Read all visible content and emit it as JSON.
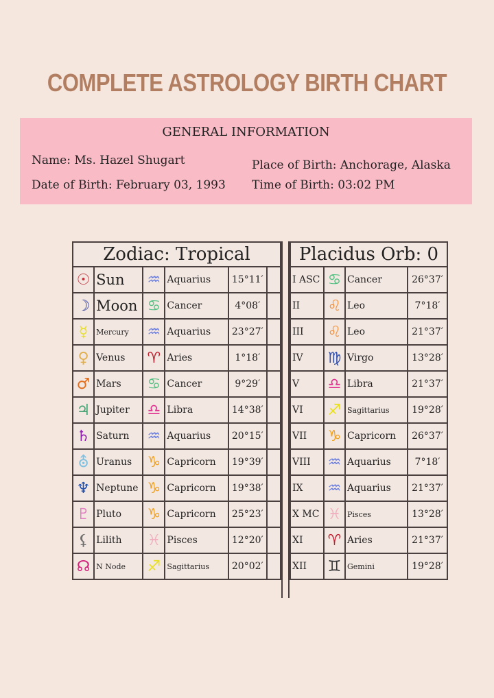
{
  "title": "COMPLETE ASTROLOGY BIRTH CHART",
  "general": {
    "heading": "GENERAL INFORMATION",
    "name": "Name: Ms. Hazel Shugart",
    "dob": "Date of Birth: February 03, 1993",
    "pob": "Place of Birth: Anchorage, Alaska",
    "tob": "Time of Birth: 03:02 PM"
  },
  "zodiac_header": "Zodiac: Tropical",
  "placidus_header": "Placidus Orb: 0",
  "planets": [
    {
      "glyph": "☉",
      "color": "#c0303a",
      "name": "Sun",
      "sign_glyph": "♒",
      "sign_color": "#6a7ee0",
      "sign": "Aquarius",
      "deg": "15°11′"
    },
    {
      "glyph": "☽",
      "color": "#2a3a9a",
      "name": "Moon",
      "sign_glyph": "♋",
      "sign_color": "#50c080",
      "sign": "Cancer",
      "deg": "4°08′"
    },
    {
      "glyph": "☿",
      "color": "#e8e030",
      "name": "Mercury",
      "sign_glyph": "♒",
      "sign_color": "#6a7ee0",
      "sign": "Aquarius",
      "deg": "23°27′"
    },
    {
      "glyph": "♀",
      "color": "#e0b050",
      "name": "Venus",
      "sign_glyph": "♈",
      "sign_color": "#c02030",
      "sign": "Aries",
      "deg": "1°18′"
    },
    {
      "glyph": "♂",
      "color": "#e07020",
      "name": "Mars",
      "sign_glyph": "♋",
      "sign_color": "#50c080",
      "sign": "Cancer",
      "deg": "9°29′"
    },
    {
      "glyph": "♃",
      "color": "#40a070",
      "name": "Jupiter",
      "sign_glyph": "♎",
      "sign_color": "#e03090",
      "sign": "Libra",
      "deg": "14°38′"
    },
    {
      "glyph": "♄",
      "color": "#9020b0",
      "name": "Saturn",
      "sign_glyph": "♒",
      "sign_color": "#6a7ee0",
      "sign": "Aquarius",
      "deg": "20°15′"
    },
    {
      "glyph": "⛢",
      "color": "#80c0e0",
      "name": "Uranus",
      "sign_glyph": "♑",
      "sign_color": "#f0a020",
      "sign": "Capricorn",
      "deg": "19°39′"
    },
    {
      "glyph": "♆",
      "color": "#2050b0",
      "name": "Neptune",
      "sign_glyph": "♑",
      "sign_color": "#f0a020",
      "sign": "Capricorn",
      "deg": "19°38′"
    },
    {
      "glyph": "♇",
      "color": "#e080c0",
      "name": "Pluto",
      "sign_glyph": "♑",
      "sign_color": "#f0a020",
      "sign": "Capricorn",
      "deg": "25°23′"
    },
    {
      "glyph": "⚸",
      "color": "#707070",
      "name": "Lilith",
      "sign_glyph": "♓",
      "sign_color": "#f0b0c0",
      "sign": "Pisces",
      "deg": "12°20′"
    },
    {
      "glyph": "☊",
      "color": "#d0207a",
      "name": "N Node",
      "sign_glyph": "♐",
      "sign_color": "#e8e020",
      "sign": "Sagittarius",
      "deg": "20°02′"
    }
  ],
  "houses": [
    {
      "house": "I ASC",
      "sign_glyph": "♋",
      "sign_color": "#50c080",
      "sign": "Cancer",
      "deg": "26°37′"
    },
    {
      "house": "II",
      "sign_glyph": "♌",
      "sign_color": "#f09040",
      "sign": "Leo",
      "deg": "7°18′"
    },
    {
      "house": "III",
      "sign_glyph": "♌",
      "sign_color": "#f09040",
      "sign": "Leo",
      "deg": "21°37′"
    },
    {
      "house": "IV",
      "sign_glyph": "♍",
      "sign_color": "#3050b0",
      "sign": "Virgo",
      "deg": "13°28′"
    },
    {
      "house": "V",
      "sign_glyph": "♎",
      "sign_color": "#e03090",
      "sign": "Libra",
      "deg": "21°37′"
    },
    {
      "house": "VI",
      "sign_glyph": "♐",
      "sign_color": "#e8e020",
      "sign": "Sagittarius",
      "deg": "19°28′"
    },
    {
      "house": "VII",
      "sign_glyph": "♑",
      "sign_color": "#f0a020",
      "sign": "Capricorn",
      "deg": "26°37′"
    },
    {
      "house": "VIII",
      "sign_glyph": "♒",
      "sign_color": "#6a7ee0",
      "sign": "Aquarius",
      "deg": "7°18′"
    },
    {
      "house": "IX",
      "sign_glyph": "♒",
      "sign_color": "#6a7ee0",
      "sign": "Aquarius",
      "deg": "21°37′"
    },
    {
      "house": "X MC",
      "sign_glyph": "♓",
      "sign_color": "#f0b0c0",
      "sign": "Pisces",
      "deg": "13°28′"
    },
    {
      "house": "XI",
      "sign_glyph": "♈",
      "sign_color": "#c02030",
      "sign": "Aries",
      "deg": "21°37′"
    },
    {
      "house": "XII",
      "sign_glyph": "♊",
      "sign_color": "#333333",
      "sign": "Gemini",
      "deg": "19°28′"
    }
  ]
}
